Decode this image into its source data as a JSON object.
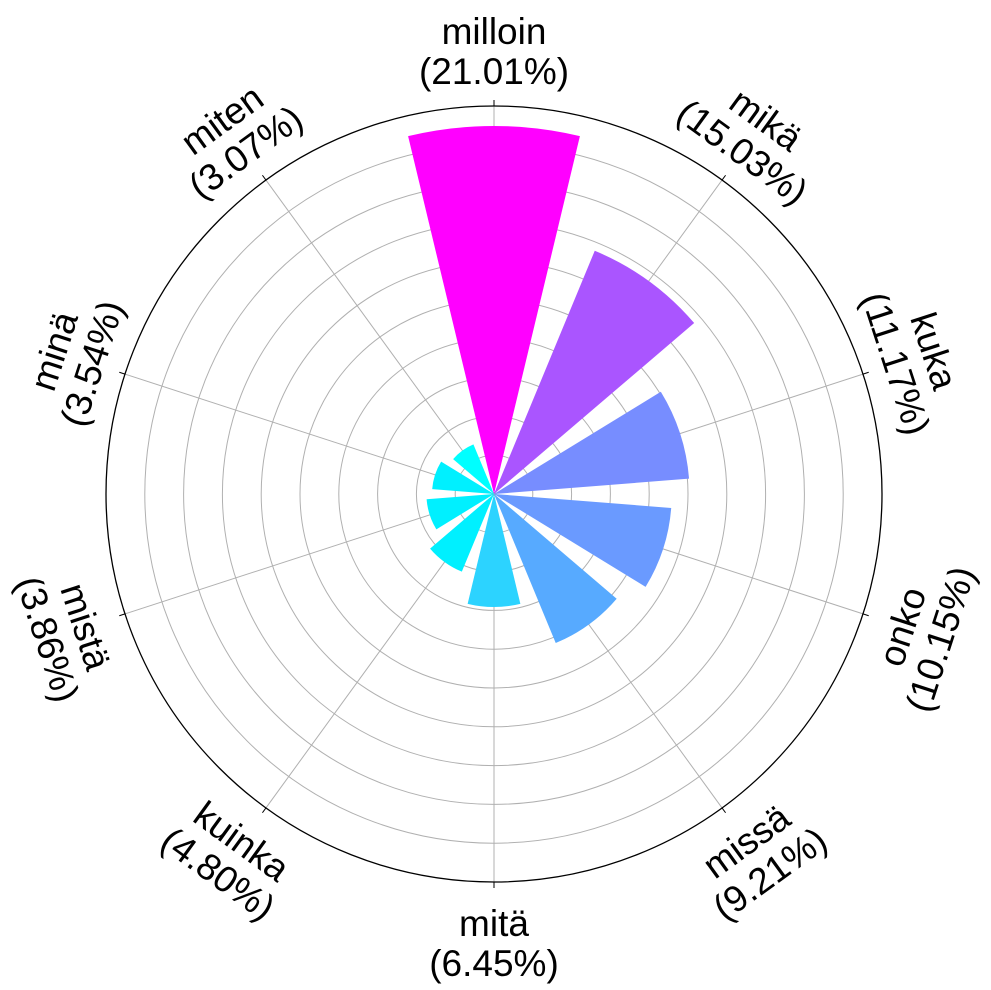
{
  "chart_data": {
    "type": "polar-bar",
    "categories": [
      "milloin",
      "mikä",
      "kuka",
      "onko",
      "missä",
      "mitä",
      "kuinka",
      "mistä",
      "minä",
      "miten"
    ],
    "percent_labels": [
      "(21.01%)",
      "(15.03%)",
      "(11.17%)",
      "(10.15%)",
      "(9.21%)",
      "(6.45%)",
      "(4.80%)",
      "(3.86%)",
      "(3.54%)",
      "(3.07%)"
    ],
    "values": [
      21.01,
      15.03,
      11.17,
      10.15,
      9.21,
      6.45,
      4.8,
      3.86,
      3.54,
      3.07
    ],
    "colors": [
      "#ff00ff",
      "#aa55ff",
      "#778dff",
      "#6a9aff",
      "#57aaff",
      "#2cd3ff",
      "#00f0ff",
      "#00f0ff",
      "#00f0ff",
      "#00ffff"
    ],
    "direction": "clockwise",
    "start_angle": "top",
    "grid": true
  }
}
